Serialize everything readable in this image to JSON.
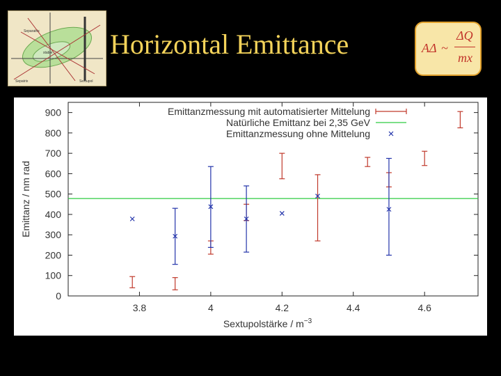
{
  "slide": {
    "title": "Horizontal Emittance",
    "formula": {
      "lhs": "AΔ",
      "arrow": "~",
      "numerator": "ΔQ",
      "denominator": "mx"
    },
    "thumbnail": {
      "labels": [
        "Separatrix",
        "stable",
        "Sepatrix",
        "Sextupol"
      ]
    }
  },
  "chart_data": {
    "type": "scatter",
    "xlabel": "Sextupolstärke / m",
    "xlabel_exp": "−3",
    "ylabel": "Emittanz / nm rad",
    "xlim": [
      3.6,
      4.75
    ],
    "ylim": [
      0,
      950
    ],
    "xticks": [
      "3.8",
      "4",
      "4.2",
      "4.4",
      "4.6"
    ],
    "xtick_values": [
      3.8,
      4.0,
      4.2,
      4.4,
      4.6
    ],
    "yticks": [
      "0",
      "100",
      "200",
      "300",
      "400",
      "500",
      "600",
      "700",
      "800",
      "900"
    ],
    "ytick_values": [
      0,
      100,
      200,
      300,
      400,
      500,
      600,
      700,
      800,
      900
    ],
    "grid": false,
    "legend_position": "top-right",
    "series": [
      {
        "name": "Emittanzmessung mit automatisierter Mittelung",
        "color": "#c0392b",
        "marker": "errorbar",
        "points": [
          {
            "x": 3.78,
            "lo": 40,
            "hi": 95
          },
          {
            "x": 3.9,
            "lo": 30,
            "hi": 90
          },
          {
            "x": 4.0,
            "lo": 205,
            "hi": 270
          },
          {
            "x": 4.1,
            "lo": 370,
            "hi": 450
          },
          {
            "x": 4.2,
            "lo": 575,
            "hi": 700
          },
          {
            "x": 4.3,
            "lo": 270,
            "hi": 595
          },
          {
            "x": 4.44,
            "lo": 635,
            "hi": 680
          },
          {
            "x": 4.5,
            "lo": 535,
            "hi": 605
          },
          {
            "x": 4.6,
            "lo": 640,
            "hi": 710
          },
          {
            "x": 4.7,
            "lo": 825,
            "hi": 905
          }
        ]
      },
      {
        "name": "Natürliche Emittanz bei 2,35 GeV",
        "color": "#2ecc40",
        "marker": "hline",
        "value": 478
      },
      {
        "name": "Emittanzmessung ohne Mittelung",
        "color": "#2233aa",
        "marker": "x",
        "points": [
          {
            "x": 3.78,
            "y": 378
          },
          {
            "x": 3.9,
            "y": 293,
            "lo": 155,
            "hi": 430
          },
          {
            "x": 4.0,
            "y": 438,
            "lo": 238,
            "hi": 635
          },
          {
            "x": 4.1,
            "y": 378,
            "lo": 215,
            "hi": 540
          },
          {
            "x": 4.2,
            "y": 405
          },
          {
            "x": 4.3,
            "y": 490
          },
          {
            "x": 4.5,
            "y": 425,
            "lo": 200,
            "hi": 675
          }
        ]
      }
    ]
  }
}
